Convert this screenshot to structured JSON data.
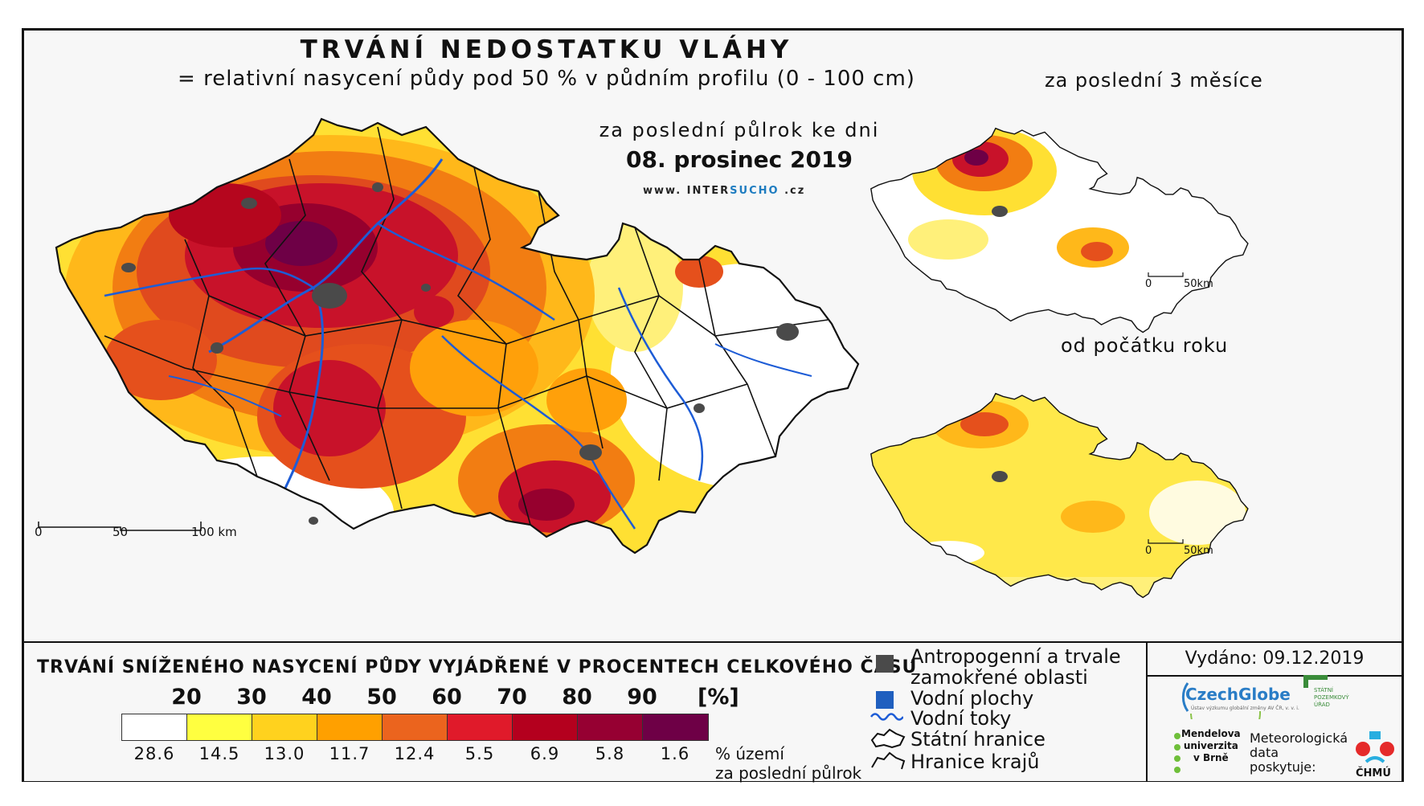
{
  "title": "TRVÁNÍ NEDOSTATKU VLÁHY",
  "subtitle": "= relativní nasycení půdy pod 50 % v půdním profilu (0 - 100 cm)",
  "main_map": {
    "period_label": "za poslední půlrok ke dni",
    "date": "08. prosinec 2019",
    "website_prefix": "www.",
    "website_name_a": "INTER",
    "website_name_b": "SUCHO",
    "website_suffix": ".cz",
    "scale": {
      "zero": "0",
      "mid": "50",
      "end": "100 km"
    }
  },
  "inset_3m": {
    "title": "za poslední 3 měsíce",
    "scale": {
      "zero": "0",
      "end": "50km"
    }
  },
  "inset_year": {
    "title": "od počátku roku",
    "scale": {
      "zero": "0",
      "end": "50km"
    }
  },
  "legend": {
    "title": "TRVÁNÍ SNÍŽENÉHO NASYCENÍ PŮDY VYJÁDŘENÉ V PROCENTECH CELKOVÉHO ČASU",
    "thresholds": [
      "20",
      "30",
      "40",
      "50",
      "60",
      "70",
      "80",
      "90"
    ],
    "unit": "[%]",
    "colors": [
      "#ffffff",
      "#ffff40",
      "#ffd21e",
      "#ffa000",
      "#eb641e",
      "#e01a2a",
      "#b4001e",
      "#960032",
      "#6e0046"
    ],
    "area_percent": [
      "28.6",
      "14.5",
      "13.0",
      "11.7",
      "12.4",
      "5.5",
      "6.9",
      "5.8",
      "1.6"
    ],
    "area_label_1": "% území",
    "area_label_2": "za poslední půlrok"
  },
  "key": {
    "anthropogenic_1": "Antropogenní a trvale",
    "anthropogenic_2": "zamokřené oblasti",
    "water_bodies": "Vodní plochy",
    "rivers": "Vodní toky",
    "state_border": "Státní hranice",
    "region_border": "Hranice krajů"
  },
  "issued": "Vydáno: 09.12.2019",
  "logos": {
    "czechglobe": "CzechGlobe",
    "czechglobe_sub": "Ústav výzkumu globální změny AV ČR, v. v. i.",
    "spu_1": "STÁTNÍ",
    "spu_2": "POZEMKOVÝ",
    "spu_3": "ÚŘAD",
    "mendel_1": "Mendelova",
    "mendel_2": "univerzita",
    "mendel_3": "v Brně",
    "meteo_1": "Meteorologická",
    "meteo_2": "data",
    "meteo_3": "poskytuje:",
    "chmu": "ČHMÚ"
  },
  "map_colors": {
    "white": "#ffffff",
    "yellow": "#ffef3a",
    "gold": "#ffcf1e",
    "orange": "#ff9a0a",
    "dark_orange": "#e8621c",
    "red": "#d9142a",
    "crimson": "#a8001e",
    "purple": "#6e0046",
    "urban": "#4a4a4a",
    "water": "#1f5fbf",
    "river": "#1d5cd6",
    "border": "#111111"
  }
}
